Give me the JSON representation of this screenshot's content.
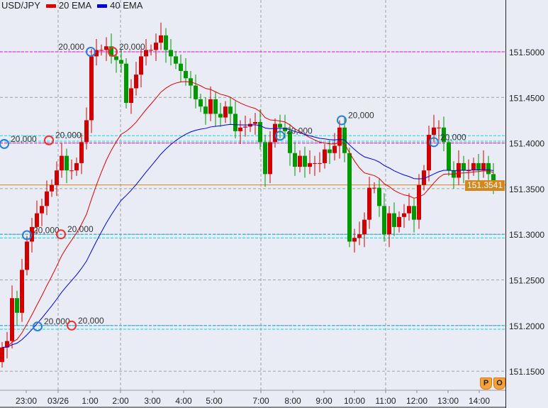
{
  "chart_data": {
    "type": "candlestick",
    "symbol": "USD/JPY",
    "legend": [
      {
        "name": "20 EMA",
        "color": "#e00000"
      },
      {
        "name": "40 EMA",
        "color": "#0000e0"
      }
    ],
    "y_ticks": [
      "151.5000",
      "151.4500",
      "151.4000",
      "151.3500",
      "151.3000",
      "151.2500",
      "151.2000",
      "151.1500"
    ],
    "ylim": [
      151.134,
      151.555
    ],
    "x_ticks": [
      "23:00",
      "03/26",
      "1:00",
      "2:00",
      "3:00",
      "4:00",
      "5:00",
      "7:00",
      "8:00",
      "9:00",
      "10:00",
      "11:00",
      "12:00",
      "13:00",
      "14:00"
    ],
    "first_open": 151.16,
    "closes": [
      151.176,
      151.183,
      151.23,
      151.214,
      151.261,
      151.292,
      151.308,
      151.323,
      151.331,
      151.347,
      151.354,
      151.37,
      151.386,
      151.37,
      151.37,
      151.378,
      151.401,
      151.425,
      151.495,
      151.502,
      151.502,
      151.506,
      151.495,
      151.491,
      151.487,
      151.444,
      151.46,
      151.475,
      151.495,
      151.502,
      151.502,
      151.51,
      151.518,
      151.502,
      151.495,
      151.487,
      151.479,
      151.471,
      151.463,
      151.448,
      151.44,
      151.432,
      151.448,
      151.432,
      151.428,
      151.44,
      151.432,
      151.413,
      151.417,
      151.418,
      151.421,
      151.423,
      151.401,
      151.366,
      151.401,
      151.421,
      151.417,
      151.413,
      151.389,
      151.374,
      151.386,
      151.374,
      151.378,
      151.378,
      151.378,
      151.393,
      151.389,
      151.397,
      151.417,
      151.389,
      151.292,
      151.296,
      151.3,
      151.316,
      151.351,
      151.351,
      151.331,
      151.3,
      151.323,
      151.308,
      151.319,
      151.323,
      151.331,
      151.316,
      151.354,
      151.37,
      151.409,
      151.417,
      151.417,
      151.401,
      151.37,
      151.362,
      151.378,
      151.37,
      151.37,
      151.378,
      151.37,
      151.378,
      151.366,
      151.354
    ],
    "up_color": "#d00000",
    "down_color": "#009900",
    "current_price": "151.3541",
    "current_price_color": "#d4861f",
    "levels_magenta": [
      151.5,
      151.4,
      151.3,
      151.2
    ],
    "levels_cyan": [
      151.408,
      151.402,
      151.3,
      151.296,
      151.2,
      151.196
    ],
    "markers": [
      {
        "type": "blue",
        "price": 151.399,
        "label": "20,000"
      },
      {
        "type": "red",
        "price": 151.403,
        "label": "20,000"
      },
      {
        "type": "blue",
        "price": 151.299,
        "label": "20,000"
      },
      {
        "type": "red",
        "price": 151.3,
        "label": "20,000"
      },
      {
        "type": "blue",
        "price": 151.199,
        "label": "20,000"
      },
      {
        "type": "red",
        "price": 151.2,
        "label": "20,000"
      },
      {
        "type": "blue",
        "price": 151.5,
        "label": "20,000"
      },
      {
        "type": "red",
        "price": 151.5,
        "label": "20,000"
      },
      {
        "type": "blue",
        "price": 151.408,
        "label": "20,000"
      },
      {
        "type": "blue",
        "price": 151.425,
        "label": "20,000"
      },
      {
        "type": "blue",
        "price": 151.401,
        "label": "20,000"
      }
    ]
  },
  "badges": [
    "P",
    "O"
  ]
}
